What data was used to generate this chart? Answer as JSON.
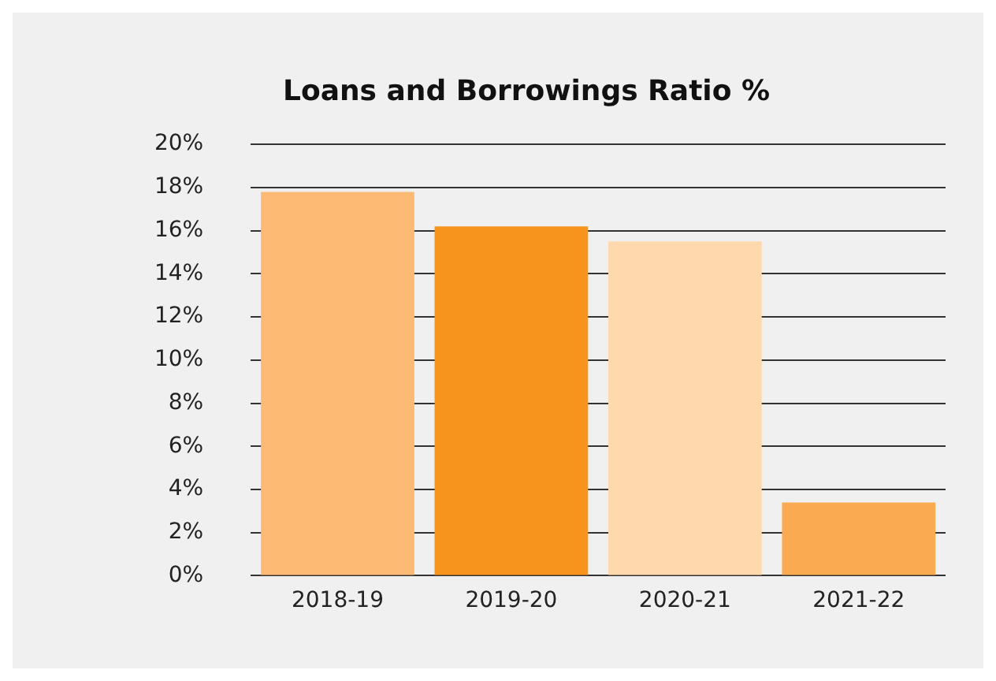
{
  "chart_data": {
    "type": "bar",
    "title": "Loans and Borrowings Ratio %",
    "categories": [
      "2018-19",
      "2019-20",
      "2020-21",
      "2021-22"
    ],
    "values": [
      17.8,
      16.2,
      15.5,
      3.4
    ],
    "colors": [
      "#fdba74",
      "#f7941d",
      "#fed9ae",
      "#faab52"
    ],
    "ylim": [
      0,
      20
    ],
    "yticks": [
      {
        "value": 0,
        "label": "0%"
      },
      {
        "value": 2,
        "label": "2%"
      },
      {
        "value": 4,
        "label": "4%"
      },
      {
        "value": 6,
        "label": "6%"
      },
      {
        "value": 8,
        "label": "8%"
      },
      {
        "value": 10,
        "label": "10%"
      },
      {
        "value": 12,
        "label": "12%"
      },
      {
        "value": 14,
        "label": "14%"
      },
      {
        "value": 16,
        "label": "16%"
      },
      {
        "value": 18,
        "label": "18%"
      },
      {
        "value": 20,
        "label": "20%"
      }
    ],
    "grid": "y",
    "legend": false
  }
}
